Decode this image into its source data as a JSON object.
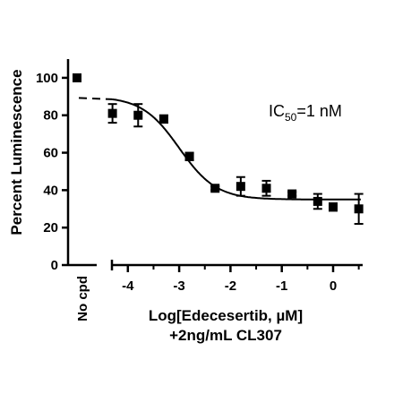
{
  "chart_data": {
    "type": "scatter",
    "ylabel": "Percent Luminescence",
    "xlabel_lines": [
      "Log[Edecesertib, µM]",
      "+2ng/mL CL307"
    ],
    "annotation": {
      "prefix": "IC",
      "subscript": "50",
      "suffix": "=1 nM"
    },
    "xlim": [
      -4.35,
      0.55
    ],
    "ylim": [
      0,
      110
    ],
    "yticks": [
      0,
      20,
      40,
      60,
      80,
      100
    ],
    "ytick_labels": [
      "0",
      "20",
      "40",
      "60",
      "80",
      "100"
    ],
    "xticks": [
      -4,
      -3,
      -2,
      -1,
      0
    ],
    "xtick_labels": [
      "-4",
      "-3",
      "-2",
      "-1",
      "0"
    ],
    "control": {
      "label": "No cpd",
      "value": 100
    },
    "points": [
      {
        "x": -4.3,
        "y": 81,
        "err": 5
      },
      {
        "x": -3.8,
        "y": 80,
        "err": 6
      },
      {
        "x": -3.3,
        "y": 78,
        "err": 2
      },
      {
        "x": -2.8,
        "y": 58,
        "err": 2
      },
      {
        "x": -2.3,
        "y": 41,
        "err": 1
      },
      {
        "x": -1.8,
        "y": 42,
        "err": 5
      },
      {
        "x": -1.3,
        "y": 41,
        "err": 4
      },
      {
        "x": -0.8,
        "y": 38,
        "err": 1
      },
      {
        "x": -0.3,
        "y": 34,
        "err": 4
      },
      {
        "x": 0.0,
        "y": 31,
        "err": 2
      },
      {
        "x": 0.5,
        "y": 30,
        "err": 8
      }
    ],
    "fit": {
      "top": 90,
      "bottom": 35,
      "log_ic50": -3.0,
      "hill": 1.2
    }
  }
}
